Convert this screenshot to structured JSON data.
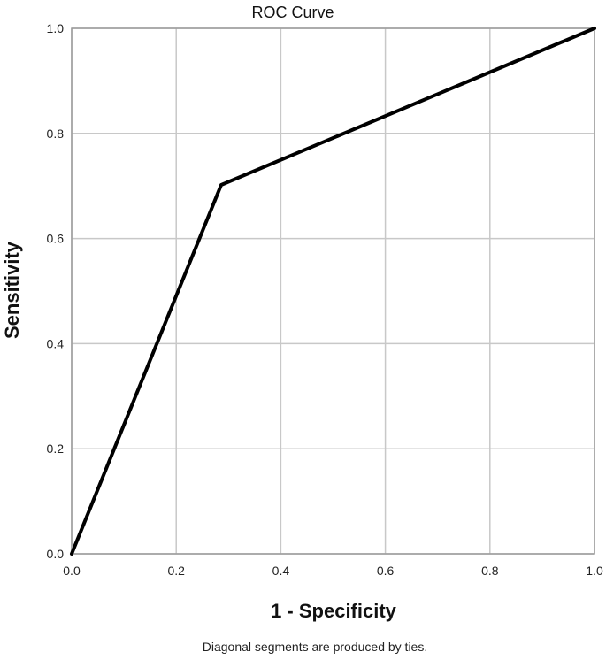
{
  "chart_data": {
    "type": "line",
    "title": "ROC Curve",
    "xlabel": "1 - Specificity",
    "ylabel": "Sensitivity",
    "footnote": "Diagonal segments are produced by ties.",
    "xlim": [
      0,
      1
    ],
    "ylim": [
      0,
      1
    ],
    "x_ticks": [
      "0.0",
      "0.2",
      "0.4",
      "0.6",
      "0.8",
      "1.0"
    ],
    "y_ticks": [
      "0.0",
      "0.2",
      "0.4",
      "0.6",
      "0.8",
      "1.0"
    ],
    "grid": true,
    "series": [
      {
        "x": [
          0.0,
          0.286,
          1.0
        ],
        "y": [
          0.0,
          0.702,
          1.0
        ],
        "color": "#000000"
      }
    ]
  }
}
